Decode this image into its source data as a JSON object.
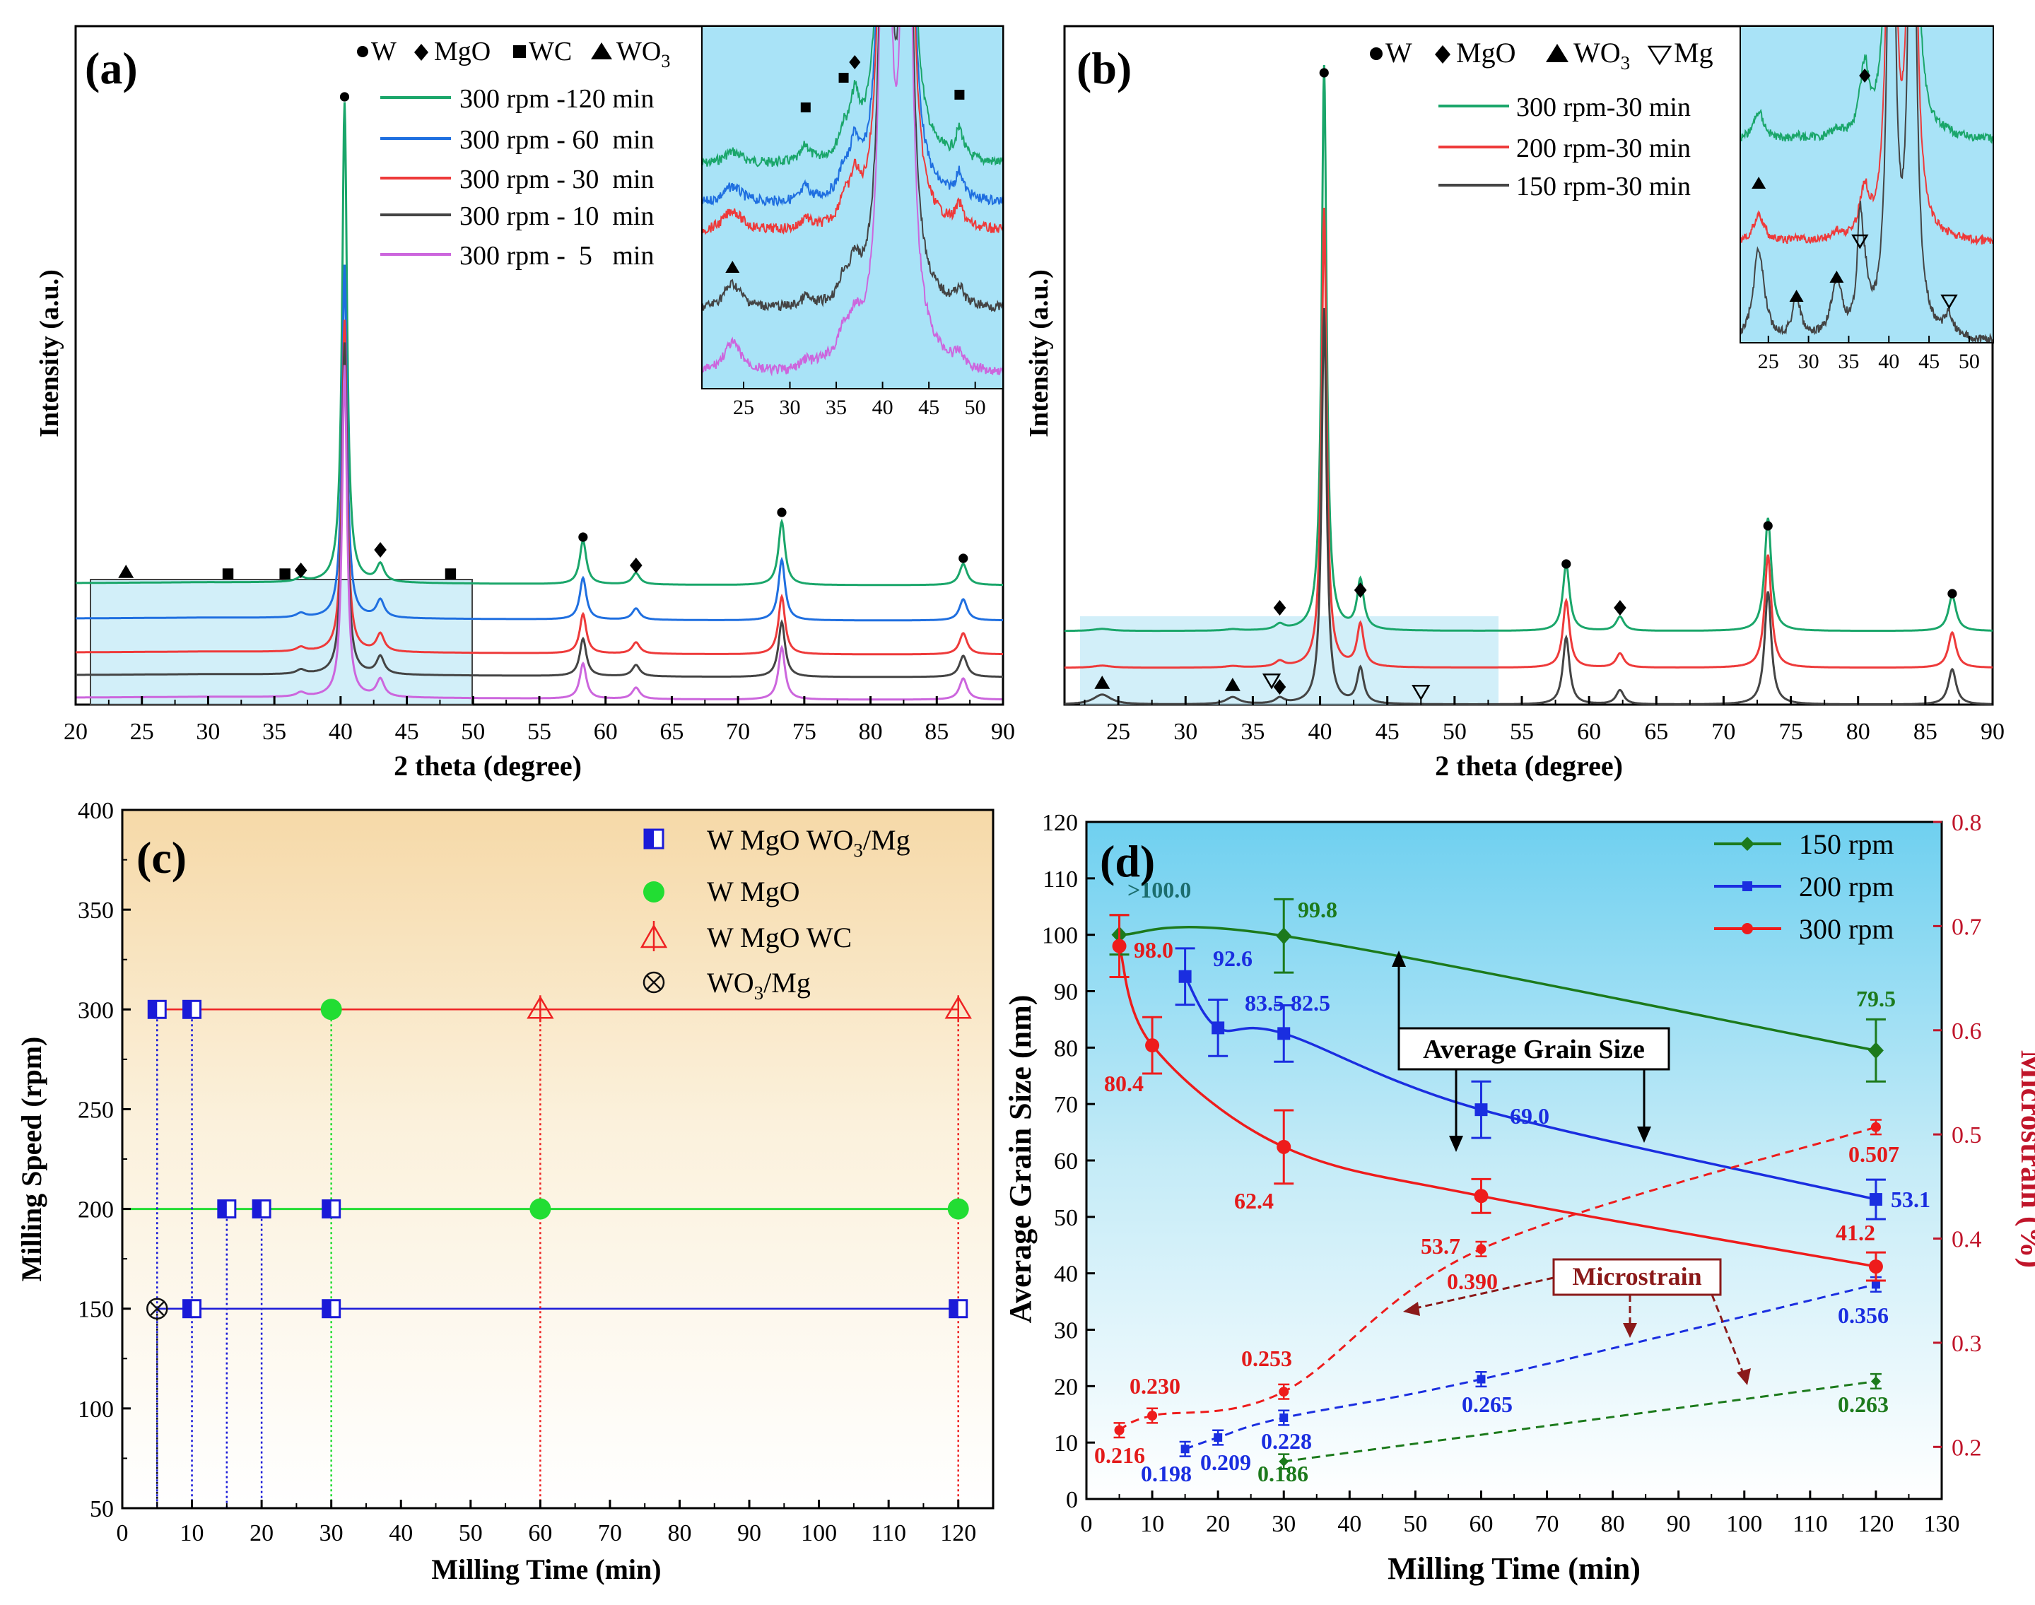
{
  "figure": {
    "panel_a": {
      "label": "(a)",
      "xlabel": "2 theta (degree)",
      "ylabel": "Intensity (a.u.)",
      "xticks": [
        "20",
        "25",
        "30",
        "35",
        "40",
        "45",
        "50",
        "55",
        "60",
        "65",
        "70",
        "75",
        "80",
        "85",
        "90"
      ],
      "phase_legend": {
        "W": "W",
        "MgO": "MgO",
        "WC": "WC",
        "WO3": "WO"
      },
      "series": [
        {
          "name": "300 rpm -120 min",
          "color": "#1aa66a"
        },
        {
          "name": "300 rpm - 60  min",
          "color": "#1f6fe0"
        },
        {
          "name": "300 rpm - 30  min",
          "color": "#ee3a3a"
        },
        {
          "name": "300 rpm - 10  min",
          "color": "#444444"
        },
        {
          "name": "300 rpm -  5   min",
          "color": "#cc66dd"
        }
      ],
      "inset_xticks": [
        "25",
        "30",
        "35",
        "40",
        "45",
        "50"
      ]
    },
    "panel_b": {
      "label": "(b)",
      "xlabel": "2 theta (degree)",
      "ylabel": "Intensity (a.u.)",
      "xticks": [
        "25",
        "30",
        "35",
        "40",
        "45",
        "50",
        "55",
        "60",
        "65",
        "70",
        "75",
        "80",
        "85",
        "90"
      ],
      "phase_legend": {
        "W": "W",
        "MgO": "MgO",
        "WO3": "WO",
        "Mg": "Mg"
      },
      "series": [
        {
          "name": "300 rpm-30 min",
          "color": "#1aa66a"
        },
        {
          "name": "200 rpm-30 min",
          "color": "#ee3a3a"
        },
        {
          "name": "150 rpm-30 min",
          "color": "#444444"
        }
      ],
      "inset_xticks": [
        "25",
        "30",
        "35",
        "40",
        "45",
        "50"
      ]
    },
    "panel_c": {
      "label": "(c)",
      "xlabel": "Milling Time (min)",
      "ylabel": "Milling Speed (rpm)",
      "xticks": [
        "0",
        "10",
        "20",
        "30",
        "40",
        "50",
        "60",
        "70",
        "80",
        "90",
        "100",
        "110",
        "120"
      ],
      "yticks": [
        "50",
        "100",
        "150",
        "200",
        "250",
        "300",
        "350",
        "400"
      ],
      "legend": [
        "W MgO WO",
        "W MgO",
        "W MgO WC",
        "WO"
      ]
    },
    "panel_d": {
      "label": "(d)",
      "xlabel": "Milling Time (min)",
      "ylabel_left": "Average Grain Size (nm)",
      "ylabel_right": "Microstrain (%)",
      "xticks": [
        "0",
        "10",
        "20",
        "30",
        "40",
        "50",
        "60",
        "70",
        "80",
        "90",
        "100",
        "110",
        "120",
        "130"
      ],
      "yticks_left": [
        "0",
        "10",
        "20",
        "30",
        "40",
        "50",
        "60",
        "70",
        "80",
        "90",
        "100",
        "110",
        "120"
      ],
      "yticks_right": [
        "0.2",
        "0.3",
        "0.4",
        "0.5",
        "0.6",
        "0.7",
        "0.8"
      ],
      "legend": [
        "150 rpm",
        "200 rpm",
        "300 rpm"
      ],
      "box_grain": "Average Grain Size",
      "box_strain": "Microstrain",
      "labels_150_grain": [
        ">100.0",
        "99.8",
        "79.5"
      ],
      "labels_200_grain": [
        "92.6",
        "83.5",
        "82.5",
        "69.0",
        "53.1"
      ],
      "labels_300_grain": [
        "98.0",
        "80.4",
        "62.4",
        "53.7",
        "41.2"
      ],
      "labels_150_strain": [
        "0.186",
        "0.263"
      ],
      "labels_200_strain": [
        "0.198",
        "0.209",
        "0.228",
        "0.265",
        "0.356"
      ],
      "labels_300_strain": [
        "0.216",
        "0.230",
        "0.253",
        "0.390",
        "0.507"
      ]
    }
  },
  "chart_data": [
    {
      "type": "line",
      "title": "(a)",
      "xlabel": "2 theta (degree)",
      "ylabel": "Intensity (a.u.)",
      "xlim": [
        20,
        90
      ],
      "series": [
        {
          "name": "300 rpm -120 min",
          "peaks": [
            40.3,
            43.0,
            58.3,
            62.3,
            73.3,
            87.0
          ]
        },
        {
          "name": "300 rpm - 60  min",
          "peaks": [
            40.3,
            43.0,
            58.3,
            62.3,
            73.3,
            87.0
          ]
        },
        {
          "name": "300 rpm - 30  min",
          "peaks": [
            40.3,
            43.0,
            58.3,
            62.3,
            73.3,
            87.0
          ]
        },
        {
          "name": "300 rpm - 10  min",
          "peaks": [
            40.3,
            43.0,
            58.3,
            62.3,
            73.3,
            87.0
          ]
        },
        {
          "name": "300 rpm -  5   min",
          "peaks": [
            40.3,
            43.0,
            58.3,
            62.3,
            73.3,
            87.0
          ]
        }
      ]
    },
    {
      "type": "line",
      "title": "(b)",
      "xlabel": "2 theta (degree)",
      "ylabel": "Intensity (a.u.)",
      "xlim": [
        21,
        90
      ],
      "series": [
        {
          "name": "300 rpm-30 min",
          "peaks": [
            40.3,
            43.0,
            58.3,
            62.3,
            73.3,
            87.0
          ]
        },
        {
          "name": "200 rpm-30 min",
          "peaks": [
            40.3,
            43.0,
            58.3,
            62.3,
            73.3,
            87.0
          ]
        },
        {
          "name": "150 rpm-30 min",
          "peaks": [
            40.3,
            43.0,
            58.3,
            62.3,
            73.3,
            87.0
          ]
        }
      ]
    },
    {
      "type": "scatter",
      "title": "(c)",
      "xlabel": "Milling Time (min)",
      "ylabel": "Milling Speed (rpm)",
      "xlim": [
        0,
        125
      ],
      "ylim": [
        50,
        400
      ],
      "series": [
        {
          "name": "W MgO WO3/Mg",
          "points": [
            [
              5,
              300
            ],
            [
              10,
              300
            ],
            [
              15,
              200
            ],
            [
              20,
              200
            ],
            [
              30,
              200
            ],
            [
              10,
              150
            ],
            [
              30,
              150
            ],
            [
              120,
              150
            ]
          ]
        },
        {
          "name": "W MgO",
          "points": [
            [
              30,
              300
            ],
            [
              60,
              200
            ],
            [
              120,
              200
            ]
          ]
        },
        {
          "name": "W MgO WC",
          "points": [
            [
              60,
              300
            ],
            [
              120,
              300
            ]
          ]
        },
        {
          "name": "WO3/Mg",
          "points": [
            [
              5,
              150
            ]
          ]
        }
      ]
    },
    {
      "type": "line",
      "title": "(d)",
      "xlabel": "Milling Time (min)",
      "ylabel": "Average Grain Size (nm)",
      "y2label": "Microstrain (%)",
      "xlim": [
        0,
        130
      ],
      "ylim": [
        0,
        120
      ],
      "y2lim": [
        0.15,
        0.8
      ],
      "series": [
        {
          "name": "150 rpm",
          "x": [
            5,
            30,
            120
          ],
          "grain": [
            100.0,
            99.8,
            79.5
          ],
          "grain_err": [
            3.5,
            6.5,
            5.5
          ],
          "strain_x": [
            30,
            120
          ],
          "strain": [
            0.186,
            0.263
          ]
        },
        {
          "name": "200 rpm",
          "x": [
            15,
            20,
            30,
            60,
            120
          ],
          "grain": [
            92.6,
            83.5,
            82.5,
            69.0,
            53.1
          ],
          "grain_err": [
            5,
            5,
            5,
            5,
            3.5
          ],
          "strain_x": [
            15,
            20,
            30,
            60,
            120
          ],
          "strain": [
            0.198,
            0.209,
            0.228,
            0.265,
            0.356
          ]
        },
        {
          "name": "300 rpm",
          "x": [
            5,
            10,
            30,
            60,
            120
          ],
          "grain": [
            98.0,
            80.4,
            62.4,
            53.7,
            41.2
          ],
          "grain_err": [
            5.5,
            5,
            6.5,
            3,
            2.5
          ],
          "strain_x": [
            5,
            10,
            30,
            60,
            120
          ],
          "strain": [
            0.216,
            0.23,
            0.253,
            0.39,
            0.507
          ]
        }
      ]
    }
  ]
}
